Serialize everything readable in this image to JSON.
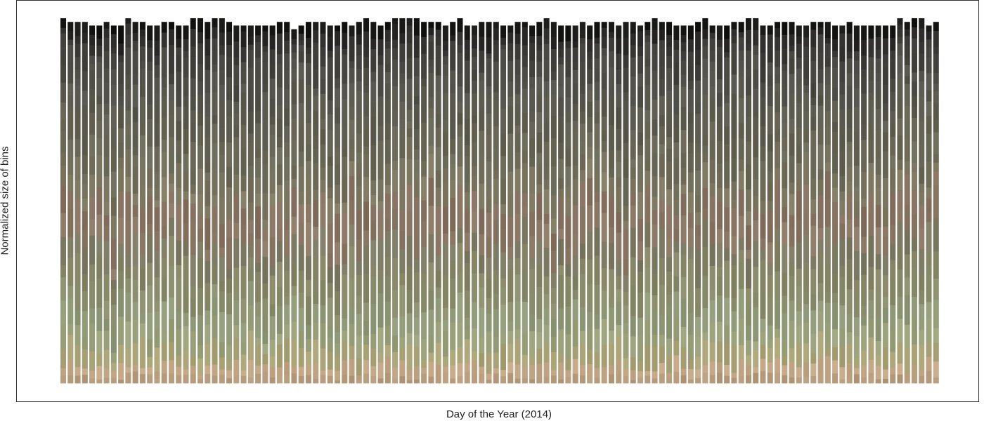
{
  "chart_data": {
    "type": "stacked-bar",
    "description_of_values": "normalized stacked bars, one per day, each segment colored by a color bin",
    "xlabel": "Day of the Year (2014)",
    "ylabel": "Normalized size of bins",
    "ylim": [
      0,
      1
    ],
    "x_tick_labels_shown": false,
    "y_tick_labels_shown": false,
    "grid": false,
    "legend": "none",
    "bar_count": 122,
    "bar_totals": [
      1.0,
      0.99,
      0.99,
      0.99,
      0.98,
      0.98,
      0.99,
      0.98,
      0.98,
      1.0,
      0.99,
      0.99,
      0.98,
      0.98,
      0.99,
      0.99,
      0.98,
      0.98,
      1.0,
      1.0,
      0.99,
      1.0,
      1.0,
      0.99,
      0.98,
      0.98,
      0.98,
      0.98,
      0.98,
      0.98,
      0.99,
      0.99,
      0.97,
      0.98,
      0.99,
      0.99,
      0.99,
      0.98,
      0.98,
      0.99,
      0.98,
      0.99,
      1.0,
      0.99,
      0.98,
      0.99,
      1.0,
      1.0,
      1.0,
      1.0,
      0.99,
      0.99,
      0.99,
      0.98,
      0.99,
      1.0,
      0.98,
      0.98,
      0.99,
      0.99,
      0.99,
      0.98,
      0.98,
      0.99,
      0.99,
      0.98,
      0.99,
      1.0,
      0.99,
      0.98,
      0.98,
      0.98,
      0.99,
      0.98,
      0.99,
      0.99,
      0.99,
      0.98,
      0.99,
      0.99,
      0.98,
      0.99,
      1.0,
      0.99,
      0.99,
      0.98,
      0.98,
      0.98,
      0.99,
      1.0,
      0.98,
      0.98,
      0.98,
      0.99,
      0.99,
      1.0,
      1.0,
      0.98,
      0.98,
      0.99,
      0.99,
      0.99,
      0.98,
      0.98,
      0.99,
      0.99,
      0.99,
      0.98,
      0.98,
      0.99,
      0.98,
      0.98,
      0.98,
      0.98,
      0.98,
      0.98,
      1.0,
      0.99,
      1.0,
      1.0,
      0.98,
      0.99
    ],
    "bin_colors": [
      "#b69a7c",
      "#c1a585",
      "#a9a276",
      "#99a07a",
      "#8f9877",
      "#8a8d6c",
      "#858566",
      "#7c7a62",
      "#8a7764",
      "#86705f",
      "#7e7960",
      "#736f5b",
      "#6b6a58",
      "#666352",
      "#5e5d4f",
      "#5a584c",
      "#53524a",
      "#4c4b44",
      "#45443e",
      "#3a3936",
      "#2b2a28",
      "#161615"
    ],
    "bin_shares_typical": [
      0.02,
      0.03,
      0.05,
      0.05,
      0.06,
      0.06,
      0.06,
      0.06,
      0.06,
      0.06,
      0.05,
      0.05,
      0.05,
      0.05,
      0.05,
      0.05,
      0.04,
      0.04,
      0.04,
      0.03,
      0.03,
      0.03
    ]
  }
}
